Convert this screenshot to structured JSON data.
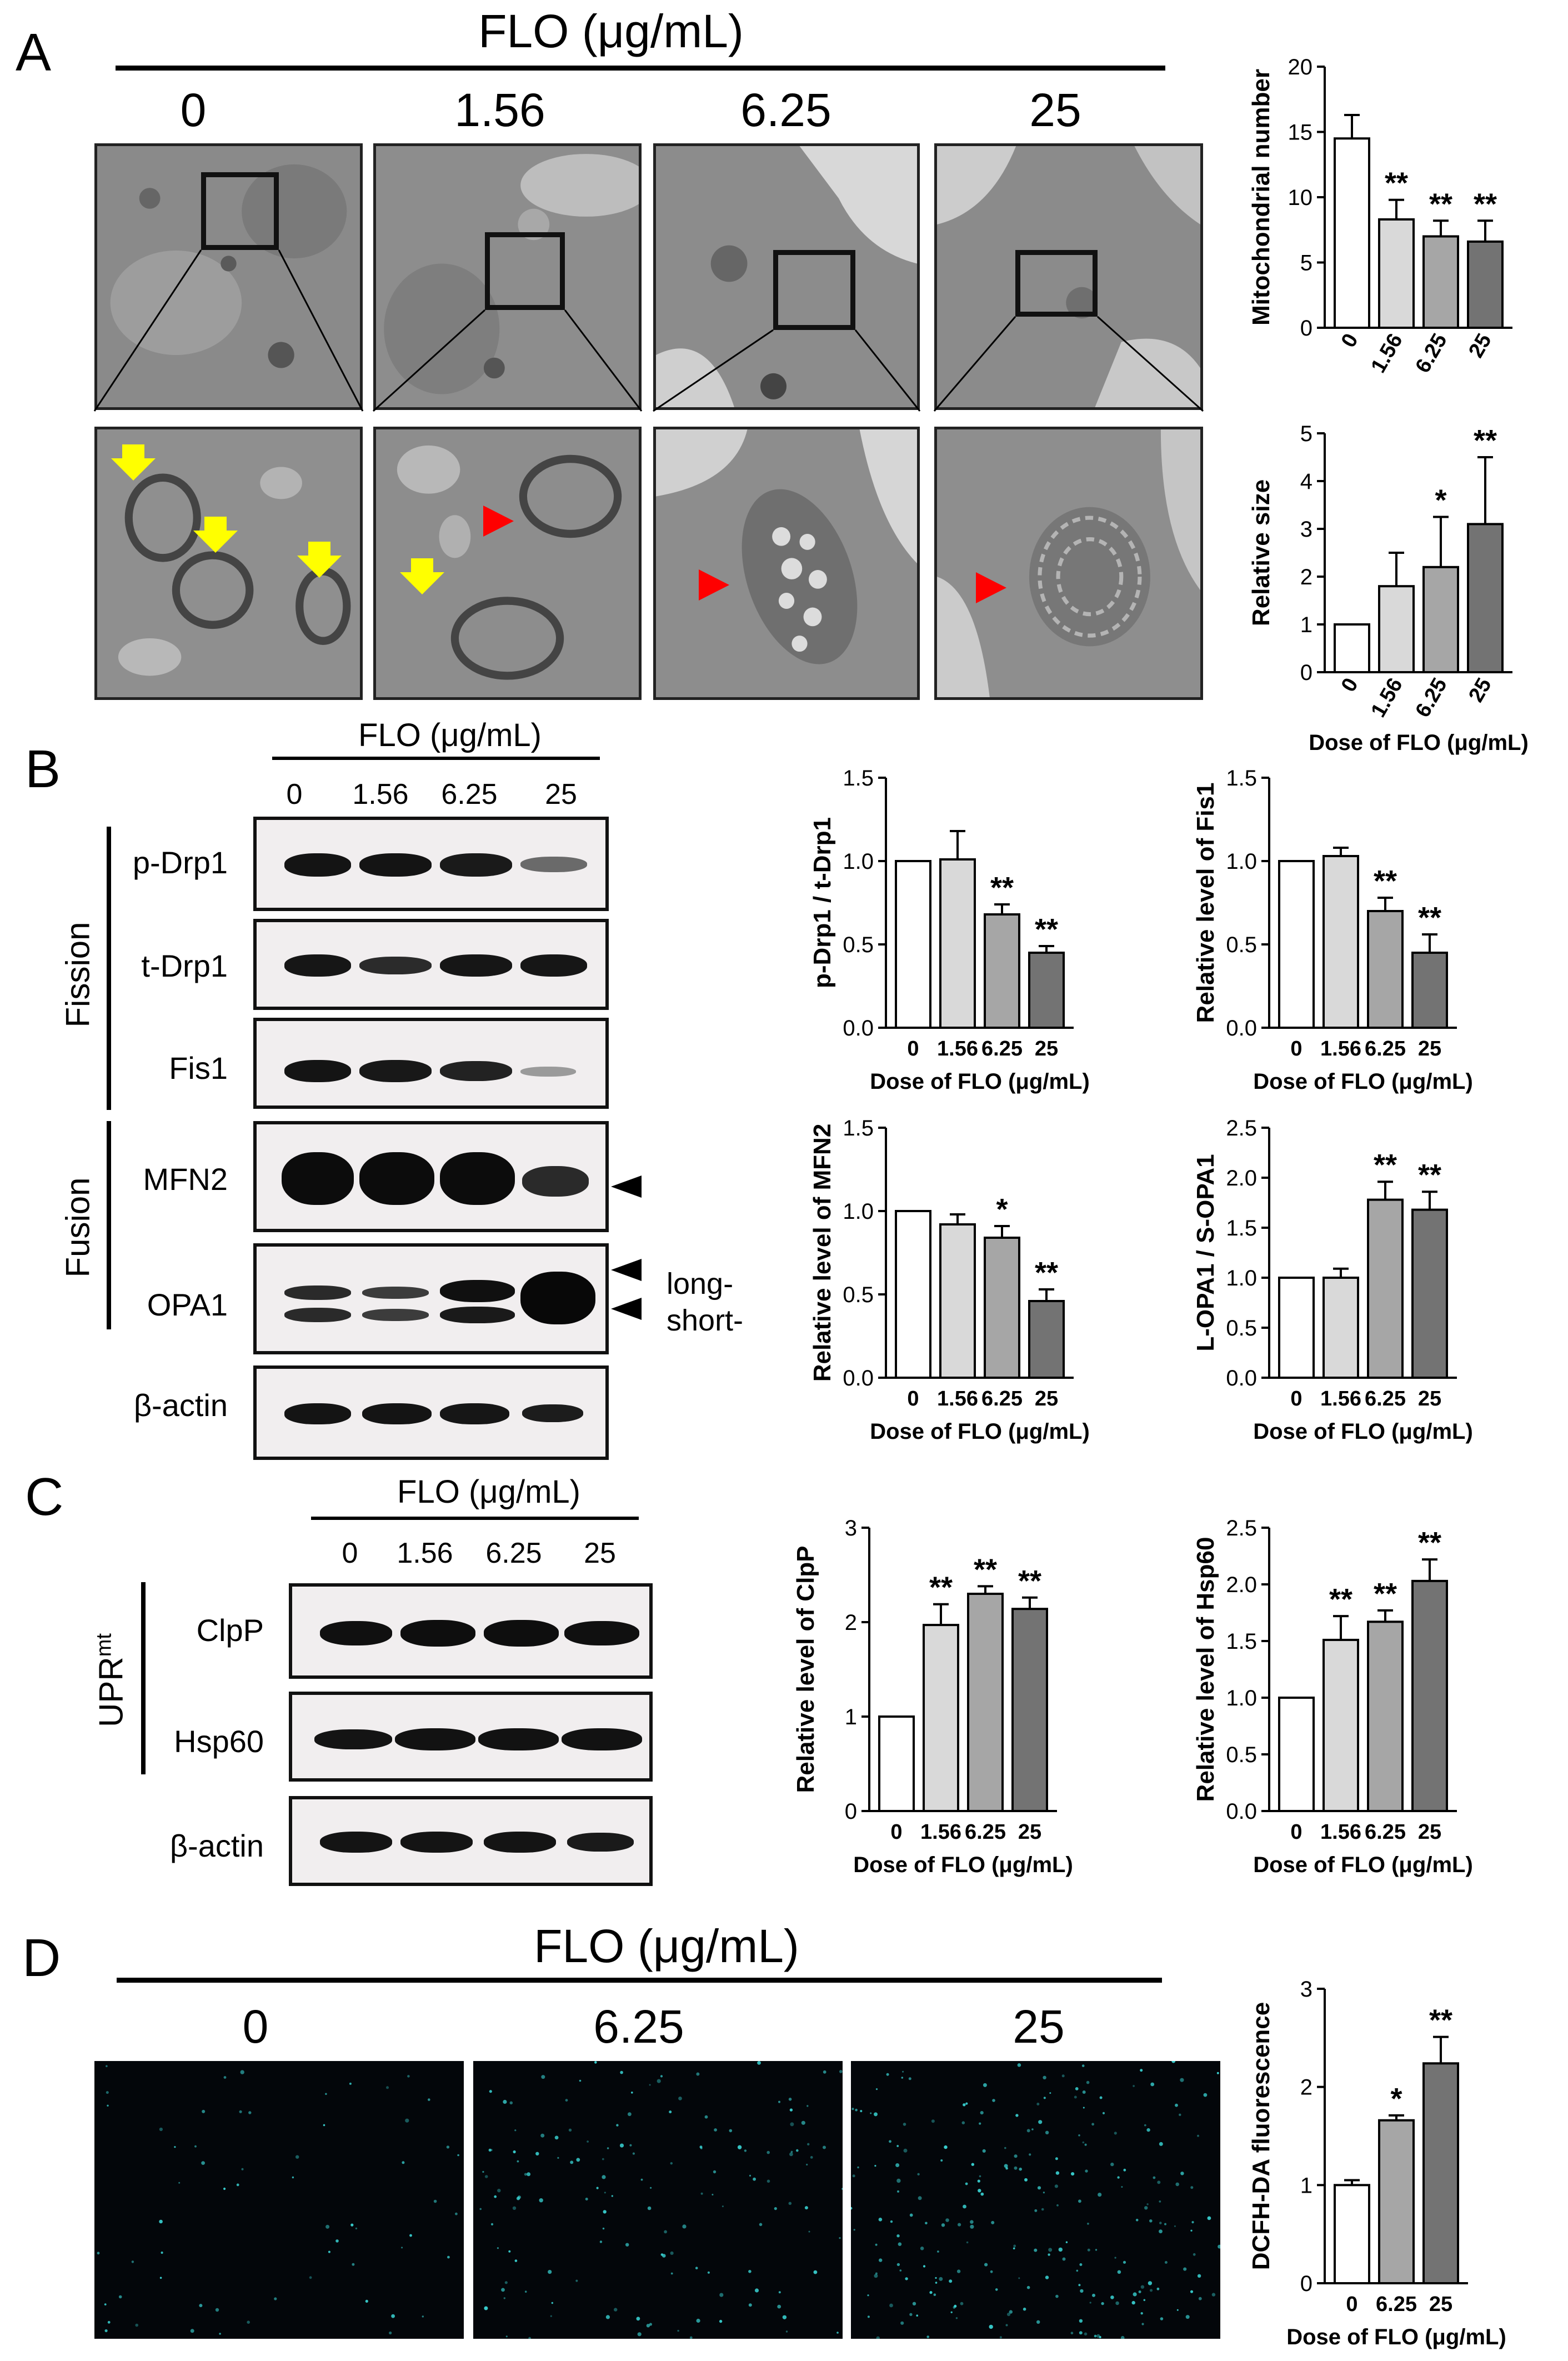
{
  "panels": {
    "a": {
      "letter": "A",
      "title": "FLO (μg/mL)",
      "doses": [
        "0",
        "1.56",
        "6.25",
        "25"
      ]
    },
    "b": {
      "letter": "B",
      "title": "FLO (μg/mL)",
      "doses": [
        "0",
        "1.56",
        "6.25",
        "25"
      ],
      "fission_label": "Fission",
      "fusion_label": "Fusion",
      "proteins": [
        "p-Drp1",
        "t-Drp1",
        "Fis1",
        "MFN2",
        "OPA1",
        "β-actin"
      ],
      "long_label": "long-",
      "short_label": "short-"
    },
    "c": {
      "letter": "C",
      "title": "FLO (μg/mL)",
      "doses": [
        "0",
        "1.56",
        "6.25",
        "25"
      ],
      "group_label": "UPR",
      "group_sup": "mt",
      "proteins": [
        "ClpP",
        "Hsp60",
        "β-actin"
      ]
    },
    "d": {
      "letter": "D",
      "title": "FLO (μg/mL)",
      "doses": [
        "0",
        "6.25",
        "25"
      ]
    }
  },
  "colors": {
    "bar_0": "#ffffff",
    "bar_1": "#d9d9d9",
    "bar_2": "#a6a6a6",
    "bar_3": "#737373",
    "arrow_yellow": "#ffff00",
    "arrowhead_red": "#ff0000",
    "fluo_dot": "#3ad6d6"
  },
  "chart_data": [
    {
      "id": "mito-number",
      "type": "bar",
      "ylabel": "Mitochondrial number",
      "xlabel": "",
      "categories": [
        "0",
        "1.56",
        "6.25",
        "25"
      ],
      "values": [
        14.5,
        8.3,
        7.0,
        6.6
      ],
      "errors": [
        1.8,
        1.5,
        1.2,
        1.6
      ],
      "sig": [
        "",
        "**",
        "**",
        "**"
      ],
      "ylim": [
        0,
        20
      ],
      "yticks": [
        "0",
        "5",
        "10",
        "15",
        "20"
      ],
      "xrot": true
    },
    {
      "id": "relative-size",
      "type": "bar",
      "ylabel": "Relative size",
      "xlabel": "Dose of FLO (μg/mL)",
      "categories": [
        "0",
        "1.56",
        "6.25",
        "25"
      ],
      "values": [
        1.0,
        1.8,
        2.2,
        3.1
      ],
      "errors": [
        0.0,
        0.7,
        1.05,
        1.4
      ],
      "sig": [
        "",
        "",
        "*",
        "**"
      ],
      "ylim": [
        0,
        5
      ],
      "yticks": [
        "0",
        "1",
        "2",
        "3",
        "4",
        "5"
      ],
      "xrot": true
    },
    {
      "id": "pdrp1-tdrp1",
      "type": "bar",
      "ylabel": "p-Drp1 / t-Drp1",
      "xlabel": "Dose of FLO (μg/mL)",
      "categories": [
        "0",
        "1.56",
        "6.25",
        "25"
      ],
      "values": [
        1.0,
        1.01,
        0.68,
        0.45
      ],
      "errors": [
        0.0,
        0.17,
        0.06,
        0.04
      ],
      "sig": [
        "",
        "",
        "**",
        "**"
      ],
      "ylim": [
        0,
        1.5
      ],
      "yticks": [
        "0.0",
        "0.5",
        "1.0",
        "1.5"
      ],
      "xrot": false
    },
    {
      "id": "fis1",
      "type": "bar",
      "ylabel": "Relative level of Fis1",
      "xlabel": "Dose of FLO (μg/mL)",
      "categories": [
        "0",
        "1.56",
        "6.25",
        "25"
      ],
      "values": [
        1.0,
        1.03,
        0.7,
        0.45
      ],
      "errors": [
        0.0,
        0.05,
        0.08,
        0.11
      ],
      "sig": [
        "",
        "",
        "**",
        "**"
      ],
      "ylim": [
        0,
        1.5
      ],
      "yticks": [
        "0.0",
        "0.5",
        "1.0",
        "1.5"
      ],
      "xrot": false
    },
    {
      "id": "mfn2",
      "type": "bar",
      "ylabel": "Relative level of MFN2",
      "xlabel": "Dose of FLO (μg/mL)",
      "categories": [
        "0",
        "1.56",
        "6.25",
        "25"
      ],
      "values": [
        1.0,
        0.92,
        0.84,
        0.46
      ],
      "errors": [
        0.0,
        0.06,
        0.07,
        0.07
      ],
      "sig": [
        "",
        "",
        "*",
        "**"
      ],
      "ylim": [
        0,
        1.5
      ],
      "yticks": [
        "0.0",
        "0.5",
        "1.0",
        "1.5"
      ],
      "xrot": false
    },
    {
      "id": "lopa1-sopa1",
      "type": "bar",
      "ylabel": "L-OPA1 / S-OPA1",
      "xlabel": "Dose of FLO (μg/mL)",
      "categories": [
        "0",
        "1.56",
        "6.25",
        "25"
      ],
      "values": [
        1.0,
        1.0,
        1.78,
        1.68
      ],
      "errors": [
        0.0,
        0.09,
        0.18,
        0.18
      ],
      "sig": [
        "",
        "",
        "**",
        "**"
      ],
      "ylim": [
        0,
        2.5
      ],
      "yticks": [
        "0.0",
        "0.5",
        "1.0",
        "1.5",
        "2.0",
        "2.5"
      ],
      "xrot": false
    },
    {
      "id": "clpp",
      "type": "bar",
      "ylabel": "Relative level of ClpP",
      "xlabel": "Dose of FLO (μg/mL)",
      "categories": [
        "0",
        "1.56",
        "6.25",
        "25"
      ],
      "values": [
        1.0,
        1.97,
        2.3,
        2.14
      ],
      "errors": [
        0.0,
        0.22,
        0.08,
        0.12
      ],
      "sig": [
        "",
        "**",
        "**",
        "**"
      ],
      "ylim": [
        0,
        3
      ],
      "yticks": [
        "0",
        "1",
        "2",
        "3"
      ],
      "xrot": false
    },
    {
      "id": "hsp60",
      "type": "bar",
      "ylabel": "Relative level of Hsp60",
      "xlabel": "Dose of FLO (μg/mL)",
      "categories": [
        "0",
        "1.56",
        "6.25",
        "25"
      ],
      "values": [
        1.0,
        1.51,
        1.67,
        2.03
      ],
      "errors": [
        0.0,
        0.21,
        0.1,
        0.19
      ],
      "sig": [
        "",
        "**",
        "**",
        "**"
      ],
      "ylim": [
        0,
        2.5
      ],
      "yticks": [
        "0.0",
        "0.5",
        "1.0",
        "1.5",
        "2.0",
        "2.5"
      ],
      "xrot": false
    },
    {
      "id": "dcfh",
      "type": "bar",
      "ylabel": "DCFH-DA fluorescence",
      "xlabel": "Dose of FLO (μg/mL)",
      "categories": [
        "0",
        "6.25",
        "25"
      ],
      "values": [
        1.0,
        1.66,
        2.24
      ],
      "errors": [
        0.05,
        0.05,
        0.27
      ],
      "sig": [
        "",
        "*",
        "**"
      ],
      "ylim": [
        0,
        3
      ],
      "yticks": [
        "0",
        "1",
        "2",
        "3"
      ],
      "xrot": false
    }
  ]
}
